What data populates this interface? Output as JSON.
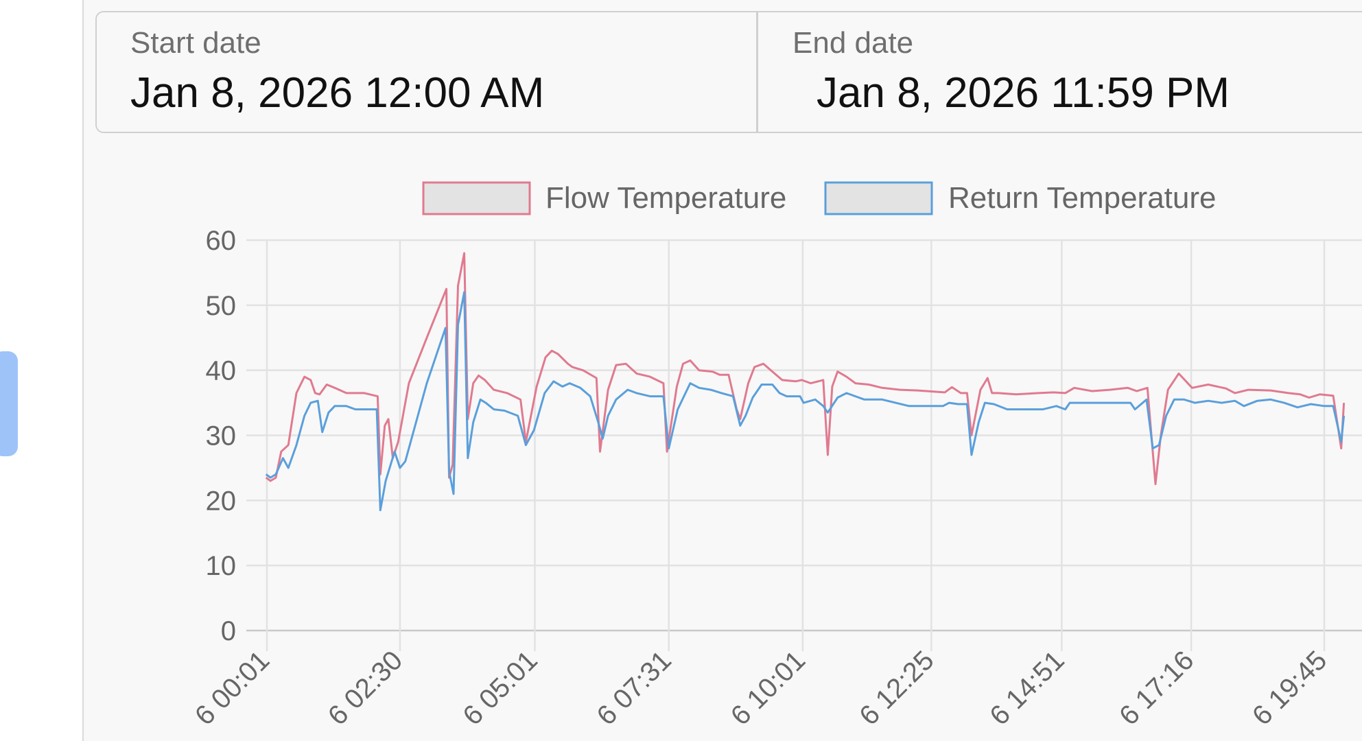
{
  "date_range": {
    "start_label": "Start date",
    "start_value": "Jan 8, 2026 12:00 AM",
    "end_label": "End date",
    "end_value": "Jan 8, 2026 11:59 PM"
  },
  "chart_data": {
    "type": "line",
    "legend_position": "top",
    "grid": true,
    "ylim": [
      0,
      60
    ],
    "y_ticks": [
      0,
      10,
      20,
      30,
      40,
      50,
      60
    ],
    "x_tick_labels": [
      "00:01",
      "02:30",
      "05:01",
      "07:31",
      "10:01",
      "12:25",
      "14:51",
      "17:16",
      "19:45"
    ],
    "x_tick_label_prefix": "6",
    "series": [
      {
        "name": "Flow Temperature",
        "color": "#e07a8f",
        "points": [
          [
            "00:00",
            23.5
          ],
          [
            "00:05",
            23.0
          ],
          [
            "00:11",
            23.5
          ],
          [
            "00:17",
            27.5
          ],
          [
            "00:25",
            28.5
          ],
          [
            "00:34",
            36.5
          ],
          [
            "00:43",
            39.0
          ],
          [
            "00:50",
            38.5
          ],
          [
            "00:55",
            36.5
          ],
          [
            "01:00",
            36.3
          ],
          [
            "01:08",
            37.8
          ],
          [
            "01:17",
            37.3
          ],
          [
            "01:30",
            36.5
          ],
          [
            "01:50",
            36.5
          ],
          [
            "02:05",
            36.0
          ],
          [
            "02:08",
            24.0
          ],
          [
            "02:13",
            31.5
          ],
          [
            "02:17",
            32.5
          ],
          [
            "02:22",
            26.5
          ],
          [
            "02:28",
            29.0
          ],
          [
            "02:40",
            38.0
          ],
          [
            "03:00",
            45.0
          ],
          [
            "03:22",
            52.5
          ],
          [
            "03:25",
            23.5
          ],
          [
            "03:29",
            25.5
          ],
          [
            "03:35",
            53.0
          ],
          [
            "03:42",
            58.0
          ],
          [
            "03:46",
            32.5
          ],
          [
            "03:52",
            38.0
          ],
          [
            "03:58",
            39.2
          ],
          [
            "04:05",
            38.5
          ],
          [
            "04:15",
            37.0
          ],
          [
            "04:30",
            36.5
          ],
          [
            "04:45",
            35.5
          ],
          [
            "04:51",
            29.0
          ],
          [
            "05:03",
            37.5
          ],
          [
            "05:13",
            42.0
          ],
          [
            "05:20",
            43.0
          ],
          [
            "05:27",
            42.5
          ],
          [
            "05:38",
            41.0
          ],
          [
            "05:43",
            40.5
          ],
          [
            "05:55",
            40.0
          ],
          [
            "06:10",
            38.8
          ],
          [
            "06:14",
            27.5
          ],
          [
            "06:23",
            37.0
          ],
          [
            "06:32",
            40.8
          ],
          [
            "06:43",
            41.0
          ],
          [
            "06:55",
            39.5
          ],
          [
            "07:10",
            39.0
          ],
          [
            "07:25",
            38.0
          ],
          [
            "07:29",
            27.5
          ],
          [
            "07:40",
            37.5
          ],
          [
            "07:47",
            41.0
          ],
          [
            "07:55",
            41.5
          ],
          [
            "08:05",
            40.0
          ],
          [
            "08:20",
            39.8
          ],
          [
            "08:28",
            39.3
          ],
          [
            "08:38",
            39.3
          ],
          [
            "08:47",
            34.0
          ],
          [
            "08:51",
            32.5
          ],
          [
            "09:00",
            38.0
          ],
          [
            "09:07",
            40.5
          ],
          [
            "09:17",
            41.0
          ],
          [
            "09:27",
            39.8
          ],
          [
            "09:38",
            38.5
          ],
          [
            "09:53",
            38.3
          ],
          [
            "10:00",
            38.5
          ],
          [
            "10:10",
            38.0
          ],
          [
            "10:24",
            38.5
          ],
          [
            "10:29",
            27.0
          ],
          [
            "10:34",
            37.5
          ],
          [
            "10:40",
            39.8
          ],
          [
            "10:50",
            39.0
          ],
          [
            "11:00",
            38.0
          ],
          [
            "11:15",
            37.8
          ],
          [
            "11:30",
            37.3
          ],
          [
            "11:50",
            37.0
          ],
          [
            "12:10",
            36.9
          ],
          [
            "12:40",
            36.6
          ],
          [
            "12:48",
            37.4
          ],
          [
            "12:58",
            36.5
          ],
          [
            "13:05",
            36.5
          ],
          [
            "13:10",
            30.0
          ],
          [
            "13:20",
            37.0
          ],
          [
            "13:28",
            38.8
          ],
          [
            "13:33",
            36.5
          ],
          [
            "13:40",
            36.5
          ],
          [
            "14:00",
            36.3
          ],
          [
            "14:25",
            36.5
          ],
          [
            "14:42",
            36.6
          ],
          [
            "14:55",
            36.5
          ],
          [
            "15:05",
            37.3
          ],
          [
            "15:25",
            36.8
          ],
          [
            "15:45",
            37.0
          ],
          [
            "16:05",
            37.3
          ],
          [
            "16:15",
            36.8
          ],
          [
            "16:27",
            37.3
          ],
          [
            "16:36",
            22.5
          ],
          [
            "16:42",
            30.0
          ],
          [
            "16:50",
            37.0
          ],
          [
            "17:02",
            39.5
          ],
          [
            "17:17",
            37.3
          ],
          [
            "17:35",
            37.8
          ],
          [
            "17:55",
            37.2
          ],
          [
            "18:05",
            36.5
          ],
          [
            "18:20",
            37.0
          ],
          [
            "18:45",
            36.9
          ],
          [
            "19:05",
            36.5
          ],
          [
            "19:18",
            36.3
          ],
          [
            "19:28",
            35.8
          ],
          [
            "19:40",
            36.3
          ],
          [
            "19:55",
            36.1
          ],
          [
            "20:04",
            28.0
          ],
          [
            "20:07",
            35.0
          ]
        ]
      },
      {
        "name": "Return Temperature",
        "color": "#5a9fdb",
        "points": [
          [
            "00:00",
            24.0
          ],
          [
            "00:05",
            23.5
          ],
          [
            "00:11",
            24.0
          ],
          [
            "00:19",
            26.5
          ],
          [
            "00:25",
            25.0
          ],
          [
            "00:34",
            28.5
          ],
          [
            "00:43",
            33.0
          ],
          [
            "00:50",
            35.0
          ],
          [
            "00:58",
            35.3
          ],
          [
            "01:03",
            30.5
          ],
          [
            "01:10",
            33.5
          ],
          [
            "01:17",
            34.5
          ],
          [
            "01:30",
            34.5
          ],
          [
            "01:40",
            34.0
          ],
          [
            "02:04",
            34.0
          ],
          [
            "02:08",
            18.5
          ],
          [
            "02:14",
            23.0
          ],
          [
            "02:24",
            27.5
          ],
          [
            "02:30",
            25.0
          ],
          [
            "02:36",
            26.0
          ],
          [
            "03:00",
            38.0
          ],
          [
            "03:21",
            46.5
          ],
          [
            "03:25",
            24.5
          ],
          [
            "03:30",
            21.0
          ],
          [
            "03:35",
            47.0
          ],
          [
            "03:42",
            52.0
          ],
          [
            "03:46",
            26.5
          ],
          [
            "03:52",
            32.0
          ],
          [
            "04:00",
            35.5
          ],
          [
            "04:06",
            35.0
          ],
          [
            "04:15",
            34.0
          ],
          [
            "04:27",
            33.8
          ],
          [
            "04:42",
            33.0
          ],
          [
            "04:51",
            28.5
          ],
          [
            "05:00",
            30.8
          ],
          [
            "05:12",
            36.5
          ],
          [
            "05:22",
            38.3
          ],
          [
            "05:32",
            37.5
          ],
          [
            "05:40",
            38.0
          ],
          [
            "05:52",
            37.3
          ],
          [
            "06:03",
            36.0
          ],
          [
            "06:12",
            32.0
          ],
          [
            "06:17",
            29.5
          ],
          [
            "06:23",
            33.0
          ],
          [
            "06:32",
            35.5
          ],
          [
            "06:45",
            37.0
          ],
          [
            "06:55",
            36.5
          ],
          [
            "07:10",
            36.0
          ],
          [
            "07:25",
            36.0
          ],
          [
            "07:31",
            28.0
          ],
          [
            "07:41",
            34.0
          ],
          [
            "07:55",
            38.0
          ],
          [
            "08:05",
            37.3
          ],
          [
            "08:18",
            37.0
          ],
          [
            "08:30",
            36.5
          ],
          [
            "08:43",
            36.0
          ],
          [
            "08:51",
            31.5
          ],
          [
            "08:57",
            33.0
          ],
          [
            "09:05",
            35.8
          ],
          [
            "09:15",
            37.8
          ],
          [
            "09:27",
            37.8
          ],
          [
            "09:35",
            36.5
          ],
          [
            "09:43",
            36.0
          ],
          [
            "09:58",
            36.0
          ],
          [
            "10:02",
            35.0
          ],
          [
            "10:15",
            35.5
          ],
          [
            "10:24",
            34.5
          ],
          [
            "10:29",
            33.5
          ],
          [
            "10:40",
            35.8
          ],
          [
            "10:50",
            36.5
          ],
          [
            "11:00",
            36.0
          ],
          [
            "11:10",
            35.5
          ],
          [
            "11:30",
            35.5
          ],
          [
            "11:45",
            35.0
          ],
          [
            "12:00",
            34.5
          ],
          [
            "12:15",
            34.5
          ],
          [
            "12:38",
            34.5
          ],
          [
            "12:45",
            35.0
          ],
          [
            "12:55",
            34.8
          ],
          [
            "13:05",
            34.8
          ],
          [
            "13:10",
            27.0
          ],
          [
            "13:18",
            32.0
          ],
          [
            "13:25",
            35.0
          ],
          [
            "13:35",
            34.8
          ],
          [
            "13:50",
            34.0
          ],
          [
            "14:05",
            34.0
          ],
          [
            "14:30",
            34.0
          ],
          [
            "14:45",
            34.5
          ],
          [
            "14:55",
            34.0
          ],
          [
            "15:00",
            35.0
          ],
          [
            "15:15",
            35.0
          ],
          [
            "15:35",
            35.0
          ],
          [
            "15:55",
            35.0
          ],
          [
            "16:08",
            35.0
          ],
          [
            "16:13",
            34.0
          ],
          [
            "16:26",
            35.5
          ],
          [
            "16:33",
            28.0
          ],
          [
            "16:40",
            28.5
          ],
          [
            "16:48",
            33.0
          ],
          [
            "16:57",
            35.5
          ],
          [
            "17:08",
            35.5
          ],
          [
            "17:20",
            35.0
          ],
          [
            "17:35",
            35.3
          ],
          [
            "17:50",
            35.0
          ],
          [
            "18:05",
            35.3
          ],
          [
            "18:15",
            34.5
          ],
          [
            "18:30",
            35.3
          ],
          [
            "18:45",
            35.5
          ],
          [
            "19:00",
            35.0
          ],
          [
            "19:15",
            34.3
          ],
          [
            "19:30",
            34.8
          ],
          [
            "19:45",
            34.5
          ],
          [
            "19:55",
            34.5
          ],
          [
            "20:04",
            29.0
          ],
          [
            "20:07",
            33.0
          ]
        ]
      }
    ]
  }
}
